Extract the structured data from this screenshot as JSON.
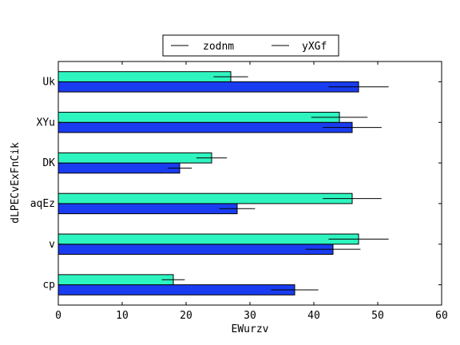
{
  "chart_data": {
    "type": "bar",
    "orientation": "horizontal",
    "title": "",
    "xlabel": "EWurzv",
    "ylabel": "dLPECvExFnCik",
    "xlim": [
      0,
      60
    ],
    "x_ticks": [
      0,
      10,
      20,
      30,
      40,
      50,
      60
    ],
    "categories": [
      "cp",
      "v",
      "aqEz",
      "DK",
      "XYu",
      "Uk"
    ],
    "legend_position": "top-center",
    "grid": false,
    "series": [
      {
        "name": "zodnm",
        "color": "#1a3cf0",
        "values": [
          37,
          43,
          28,
          19,
          46,
          47
        ],
        "errors": [
          3.7,
          4.3,
          2.8,
          1.9,
          4.6,
          4.7
        ]
      },
      {
        "name": "yXGf",
        "color": "#2ef5c0",
        "values": [
          18,
          47,
          46,
          24,
          44,
          27
        ],
        "errors": [
          1.8,
          4.7,
          4.6,
          2.4,
          4.4,
          2.7
        ]
      }
    ]
  }
}
